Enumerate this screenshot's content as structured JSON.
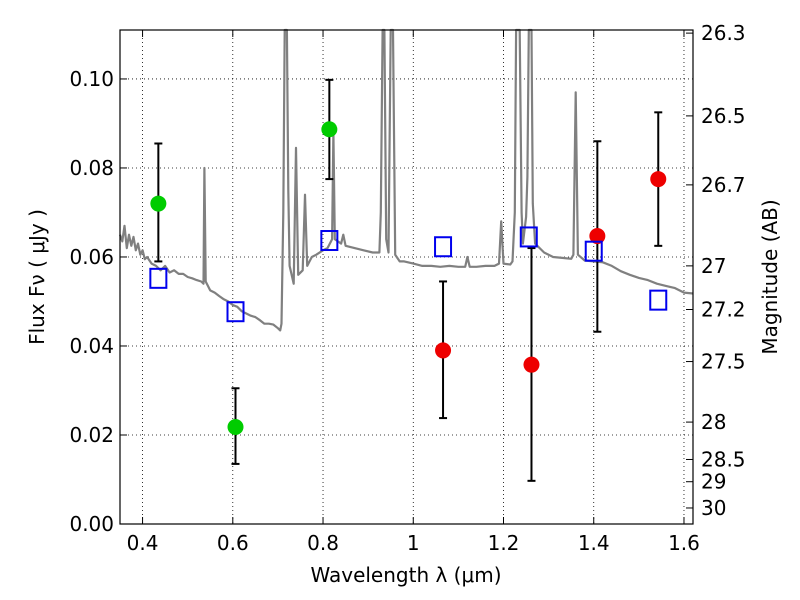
{
  "chart_data": {
    "type": "scatter",
    "title": "",
    "xlabel": "Wavelength  λ (μm)",
    "ylabel": "Flux  Fν  ( μJy )",
    "ylabel_right": "Magnitude (AB)",
    "xlim": [
      0.35,
      1.62
    ],
    "ylim": [
      0.0,
      0.111
    ],
    "grid": true,
    "x_ticks": [
      0.4,
      0.6,
      0.8,
      1.0,
      1.2,
      1.4,
      1.6
    ],
    "x_tick_labels": [
      "0.4",
      "0.6",
      "0.8",
      "1",
      "1.2",
      "1.4",
      "1.6"
    ],
    "y_ticks": [
      0.0,
      0.02,
      0.04,
      0.06,
      0.08,
      0.1
    ],
    "y_tick_labels": [
      "0.00",
      "0.02",
      "0.04",
      "0.06",
      "0.08",
      "0.10"
    ],
    "right_ticks": [
      {
        "flux": 0.1103,
        "label": "26.3"
      },
      {
        "flux": 0.0917,
        "label": "26.5"
      },
      {
        "flux": 0.0762,
        "label": "26.7"
      },
      {
        "flux": 0.058,
        "label": "27"
      },
      {
        "flux": 0.0482,
        "label": "27.2"
      },
      {
        "flux": 0.0365,
        "label": "27.5"
      },
      {
        "flux": 0.0229,
        "label": "28"
      },
      {
        "flux": 0.0145,
        "label": "28.5"
      },
      {
        "flux": 0.0095,
        "label": "29"
      },
      {
        "flux": 0.0036,
        "label": "30"
      }
    ],
    "series": [
      {
        "marker": "circle",
        "color": "#00cc00",
        "points": [
          {
            "x": 0.435,
            "y": 0.072,
            "yerr_low": 0.059,
            "yerr_high": 0.0855
          },
          {
            "x": 0.606,
            "y": 0.0218,
            "yerr_low": 0.0135,
            "yerr_high": 0.0305
          },
          {
            "x": 0.814,
            "y": 0.0887,
            "yerr_low": 0.0775,
            "yerr_high": 0.0998
          }
        ]
      },
      {
        "marker": "circle",
        "color": "#ee0000",
        "points": [
          {
            "x": 1.066,
            "y": 0.039,
            "yerr_low": 0.0238,
            "yerr_high": 0.0545
          },
          {
            "x": 1.262,
            "y": 0.0358,
            "yerr_low": 0.0097,
            "yerr_high": 0.062
          },
          {
            "x": 1.408,
            "y": 0.0647,
            "yerr_low": 0.0432,
            "yerr_high": 0.086
          },
          {
            "x": 1.543,
            "y": 0.0775,
            "yerr_low": 0.0625,
            "yerr_high": 0.0925
          }
        ]
      },
      {
        "marker": "open-square",
        "color": "#0000ee",
        "points": [
          {
            "x": 0.435,
            "y": 0.0552
          },
          {
            "x": 0.606,
            "y": 0.0477
          },
          {
            "x": 0.814,
            "y": 0.0637
          },
          {
            "x": 1.066,
            "y": 0.0623
          },
          {
            "x": 1.256,
            "y": 0.0645
          },
          {
            "x": 1.4,
            "y": 0.0613
          },
          {
            "x": 1.543,
            "y": 0.0503
          }
        ]
      },
      {
        "type": "line",
        "color": "#808080",
        "points": [
          [
            0.35,
            0.065
          ],
          [
            0.355,
            0.0635
          ],
          [
            0.36,
            0.067
          ],
          [
            0.365,
            0.062
          ],
          [
            0.37,
            0.065
          ],
          [
            0.375,
            0.0625
          ],
          [
            0.38,
            0.0645
          ],
          [
            0.385,
            0.0615
          ],
          [
            0.39,
            0.063
          ],
          [
            0.395,
            0.0605
          ],
          [
            0.4,
            0.0615
          ],
          [
            0.405,
            0.0595
          ],
          [
            0.41,
            0.06
          ],
          [
            0.42,
            0.0585
          ],
          [
            0.43,
            0.058
          ],
          [
            0.44,
            0.057
          ],
          [
            0.45,
            0.058
          ],
          [
            0.46,
            0.0565
          ],
          [
            0.47,
            0.057
          ],
          [
            0.48,
            0.0562
          ],
          [
            0.49,
            0.0562
          ],
          [
            0.5,
            0.0555
          ],
          [
            0.51,
            0.0552
          ],
          [
            0.52,
            0.0548
          ],
          [
            0.53,
            0.0545
          ],
          [
            0.535,
            0.054
          ],
          [
            0.537,
            0.08
          ],
          [
            0.54,
            0.0545
          ],
          [
            0.55,
            0.0525
          ],
          [
            0.56,
            0.052
          ],
          [
            0.57,
            0.0512
          ],
          [
            0.58,
            0.0505
          ],
          [
            0.59,
            0.05
          ],
          [
            0.6,
            0.0492
          ],
          [
            0.61,
            0.0488
          ],
          [
            0.62,
            0.0478
          ],
          [
            0.63,
            0.0473
          ],
          [
            0.64,
            0.0468
          ],
          [
            0.65,
            0.0465
          ],
          [
            0.66,
            0.0458
          ],
          [
            0.67,
            0.045
          ],
          [
            0.68,
            0.045
          ],
          [
            0.69,
            0.0448
          ],
          [
            0.7,
            0.044
          ],
          [
            0.705,
            0.0435
          ],
          [
            0.708,
            0.045
          ],
          [
            0.712,
            0.07
          ],
          [
            0.715,
            0.111
          ],
          [
            0.72,
            0.111
          ],
          [
            0.723,
            0.075
          ],
          [
            0.726,
            0.058
          ],
          [
            0.735,
            0.054
          ],
          [
            0.74,
            0.0845
          ],
          [
            0.745,
            0.056
          ],
          [
            0.755,
            0.057
          ],
          [
            0.76,
            0.074
          ],
          [
            0.765,
            0.058
          ],
          [
            0.775,
            0.06
          ],
          [
            0.785,
            0.0605
          ],
          [
            0.8,
            0.0615
          ],
          [
            0.81,
            0.062
          ],
          [
            0.82,
            0.064
          ],
          [
            0.823,
            0.088
          ],
          [
            0.826,
            0.064
          ],
          [
            0.84,
            0.063
          ],
          [
            0.845,
            0.065
          ],
          [
            0.85,
            0.0625
          ],
          [
            0.87,
            0.062
          ],
          [
            0.89,
            0.0615
          ],
          [
            0.91,
            0.061
          ],
          [
            0.925,
            0.061
          ],
          [
            0.928,
            0.07
          ],
          [
            0.932,
            0.111
          ],
          [
            0.936,
            0.111
          ],
          [
            0.94,
            0.064
          ],
          [
            0.945,
            0.061
          ],
          [
            0.95,
            0.111
          ],
          [
            0.955,
            0.111
          ],
          [
            0.96,
            0.0605
          ],
          [
            0.97,
            0.059
          ],
          [
            0.98,
            0.059
          ],
          [
            1.0,
            0.0585
          ],
          [
            1.02,
            0.058
          ],
          [
            1.04,
            0.058
          ],
          [
            1.06,
            0.0578
          ],
          [
            1.08,
            0.058
          ],
          [
            1.1,
            0.0578
          ],
          [
            1.115,
            0.0578
          ],
          [
            1.12,
            0.06
          ],
          [
            1.125,
            0.0578
          ],
          [
            1.14,
            0.0578
          ],
          [
            1.16,
            0.058
          ],
          [
            1.18,
            0.058
          ],
          [
            1.19,
            0.0585
          ],
          [
            1.195,
            0.068
          ],
          [
            1.2,
            0.0585
          ],
          [
            1.215,
            0.0583
          ],
          [
            1.22,
            0.059
          ],
          [
            1.225,
            0.07
          ],
          [
            1.228,
            0.111
          ],
          [
            1.236,
            0.111
          ],
          [
            1.24,
            0.07
          ],
          [
            1.243,
            0.063
          ],
          [
            1.25,
            0.069
          ],
          [
            1.253,
            0.078
          ],
          [
            1.256,
            0.111
          ],
          [
            1.262,
            0.111
          ],
          [
            1.265,
            0.072
          ],
          [
            1.27,
            0.063
          ],
          [
            1.29,
            0.061
          ],
          [
            1.31,
            0.06
          ],
          [
            1.33,
            0.0598
          ],
          [
            1.35,
            0.0596
          ],
          [
            1.355,
            0.0605
          ],
          [
            1.36,
            0.097
          ],
          [
            1.365,
            0.0605
          ],
          [
            1.38,
            0.0592
          ],
          [
            1.4,
            0.059
          ],
          [
            1.42,
            0.0588
          ],
          [
            1.44,
            0.058
          ],
          [
            1.46,
            0.0568
          ],
          [
            1.48,
            0.056
          ],
          [
            1.5,
            0.0553
          ],
          [
            1.52,
            0.0548
          ],
          [
            1.54,
            0.054
          ],
          [
            1.56,
            0.0535
          ],
          [
            1.58,
            0.053
          ],
          [
            1.6,
            0.052
          ],
          [
            1.62,
            0.0518
          ]
        ]
      }
    ]
  }
}
